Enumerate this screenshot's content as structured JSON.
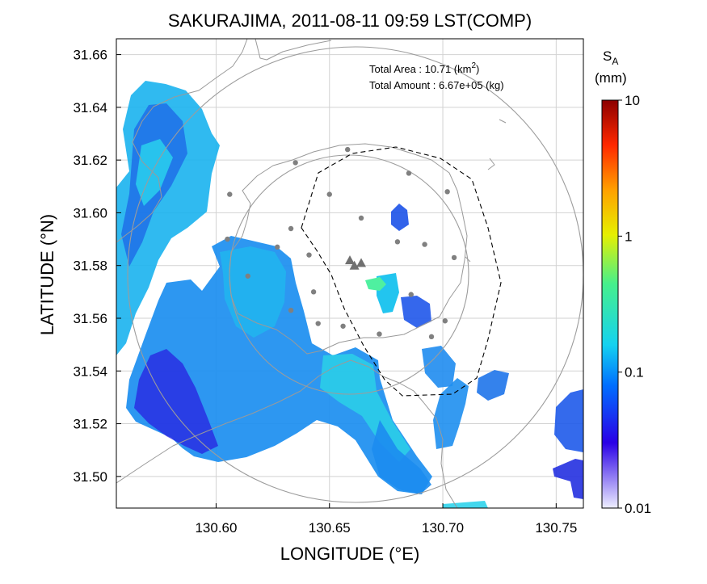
{
  "title": "SAKURAJIMA, 2011-08-11 09:59 LST(COMP)",
  "x_axis": {
    "label": "LONGITUDE (°E)",
    "ticks": [
      {
        "value": 130.6,
        "label": "130.60"
      },
      {
        "value": 130.65,
        "label": "130.65"
      },
      {
        "value": 130.7,
        "label": "130.70"
      },
      {
        "value": 130.75,
        "label": "130.75"
      }
    ],
    "range": [
      130.556,
      130.762
    ]
  },
  "y_axis": {
    "label": "LATITUDE (°N)",
    "ticks": [
      {
        "value": 31.5,
        "label": "31.50"
      },
      {
        "value": 31.52,
        "label": "31.52"
      },
      {
        "value": 31.54,
        "label": "31.54"
      },
      {
        "value": 31.56,
        "label": "31.56"
      },
      {
        "value": 31.58,
        "label": "31.58"
      },
      {
        "value": 31.6,
        "label": "31.60"
      },
      {
        "value": 31.62,
        "label": "31.62"
      },
      {
        "value": 31.64,
        "label": "31.64"
      },
      {
        "value": 31.66,
        "label": "31.66"
      }
    ],
    "range": [
      31.488,
      31.666
    ]
  },
  "info": {
    "area_label": "Total Area   : 10.71 (km",
    "area_sup": "2",
    "area_close": ")",
    "amount_label": "Total Amount : 6.67e+05 (kg)"
  },
  "colorbar": {
    "symbol": "S",
    "subscript": "A",
    "unit": "(mm)",
    "scale": "log",
    "range": [
      0.01,
      10
    ],
    "ticks": [
      {
        "value": 10,
        "label": "10"
      },
      {
        "value": 1,
        "label": "1"
      },
      {
        "value": 0.1,
        "label": "0.1"
      },
      {
        "value": 0.01,
        "label": "0.01"
      }
    ],
    "colors": [
      "#eeeeff",
      "#2a00e6",
      "#006eff",
      "#14d2f0",
      "#46f08c",
      "#e6f000",
      "#ffa000",
      "#ff2800",
      "#8c0000"
    ]
  },
  "grid": true,
  "stations_lonlat": [
    [
      130.658,
      31.624
    ],
    [
      130.635,
      31.619
    ],
    [
      130.685,
      31.615
    ],
    [
      130.702,
      31.608
    ],
    [
      130.606,
      31.607
    ],
    [
      130.65,
      31.607
    ],
    [
      130.664,
      31.598
    ],
    [
      130.633,
      31.594
    ],
    [
      130.605,
      31.59
    ],
    [
      130.627,
      31.587
    ],
    [
      130.68,
      31.589
    ],
    [
      130.692,
      31.588
    ],
    [
      130.641,
      31.584
    ],
    [
      130.705,
      31.583
    ],
    [
      130.614,
      31.576
    ],
    [
      130.643,
      31.57
    ],
    [
      130.686,
      31.569
    ],
    [
      130.633,
      31.563
    ],
    [
      130.645,
      31.558
    ],
    [
      130.656,
      31.557
    ],
    [
      130.672,
      31.554
    ],
    [
      130.695,
      31.553
    ],
    [
      130.701,
      31.559
    ]
  ],
  "summits_lonlat": [
    [
      130.659,
      31.582
    ],
    [
      130.661,
      31.58
    ],
    [
      130.664,
      31.581
    ]
  ]
}
